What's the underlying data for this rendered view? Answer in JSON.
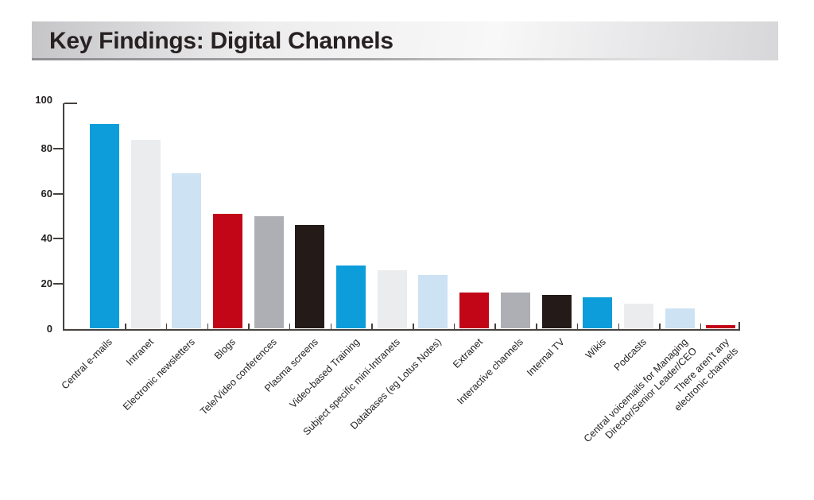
{
  "header": {
    "title": "Key Findings: Digital Channels"
  },
  "chart_data": {
    "type": "bar",
    "title": "Key Findings: Digital Channels",
    "xlabel": "",
    "ylabel": "",
    "ylim": [
      0,
      100
    ],
    "yticks": [
      0,
      20,
      40,
      60,
      80,
      100
    ],
    "grid": false,
    "legend": false,
    "categories": [
      "Central e-mails",
      "Intranet",
      "Electronic newsletters",
      "Blogs",
      "Tele/Video conferences",
      "Plasma screens",
      "Video-based Training",
      "Subject specific mini-Intranets",
      "Databases (eg Lotus Notes)",
      "Extranet",
      "Interactive channels",
      "Internal TV",
      "Wikis",
      "Podcasts",
      "Central voicemails for Managing\nDirector/Senior Leader/CEO",
      "There aren't any\nelectronic channels"
    ],
    "values": [
      91,
      84,
      69,
      51,
      50,
      46,
      28,
      26,
      24,
      16,
      16,
      15,
      14,
      11,
      9,
      1.5
    ],
    "bar_color_names": [
      "blue",
      "light_gray",
      "pale_blue",
      "red",
      "gray",
      "black",
      "blue",
      "light_gray",
      "pale_blue",
      "red",
      "gray",
      "black",
      "blue",
      "light_gray",
      "pale_blue",
      "red"
    ],
    "palette": {
      "blue": "#0d9ddb",
      "light_gray": "#eaecee",
      "pale_blue": "#cde2f3",
      "red": "#c20617",
      "gray": "#aeafb4",
      "black": "#241b18"
    },
    "axis_color": "#45423f",
    "text_color": "#231f20"
  }
}
